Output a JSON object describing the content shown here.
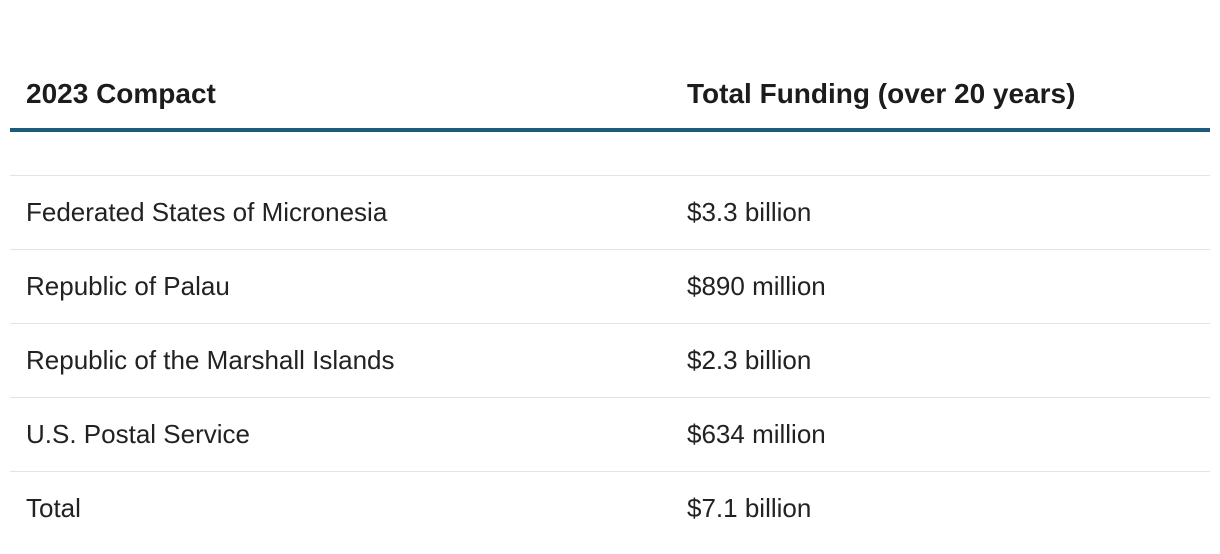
{
  "table": {
    "headers": [
      "2023 Compact",
      "Total Funding (over 20 years)"
    ],
    "rows": [
      [
        "Federated States of Micronesia",
        "$3.3 billion"
      ],
      [
        "Republic of Palau",
        "$890 million"
      ],
      [
        "Republic of the Marshall Islands",
        "$2.3 billion"
      ],
      [
        "U.S. Postal Service",
        "$634 million"
      ],
      [
        "Total",
        "$7.1 billion"
      ]
    ],
    "accent_color": "#1b5c7a"
  }
}
